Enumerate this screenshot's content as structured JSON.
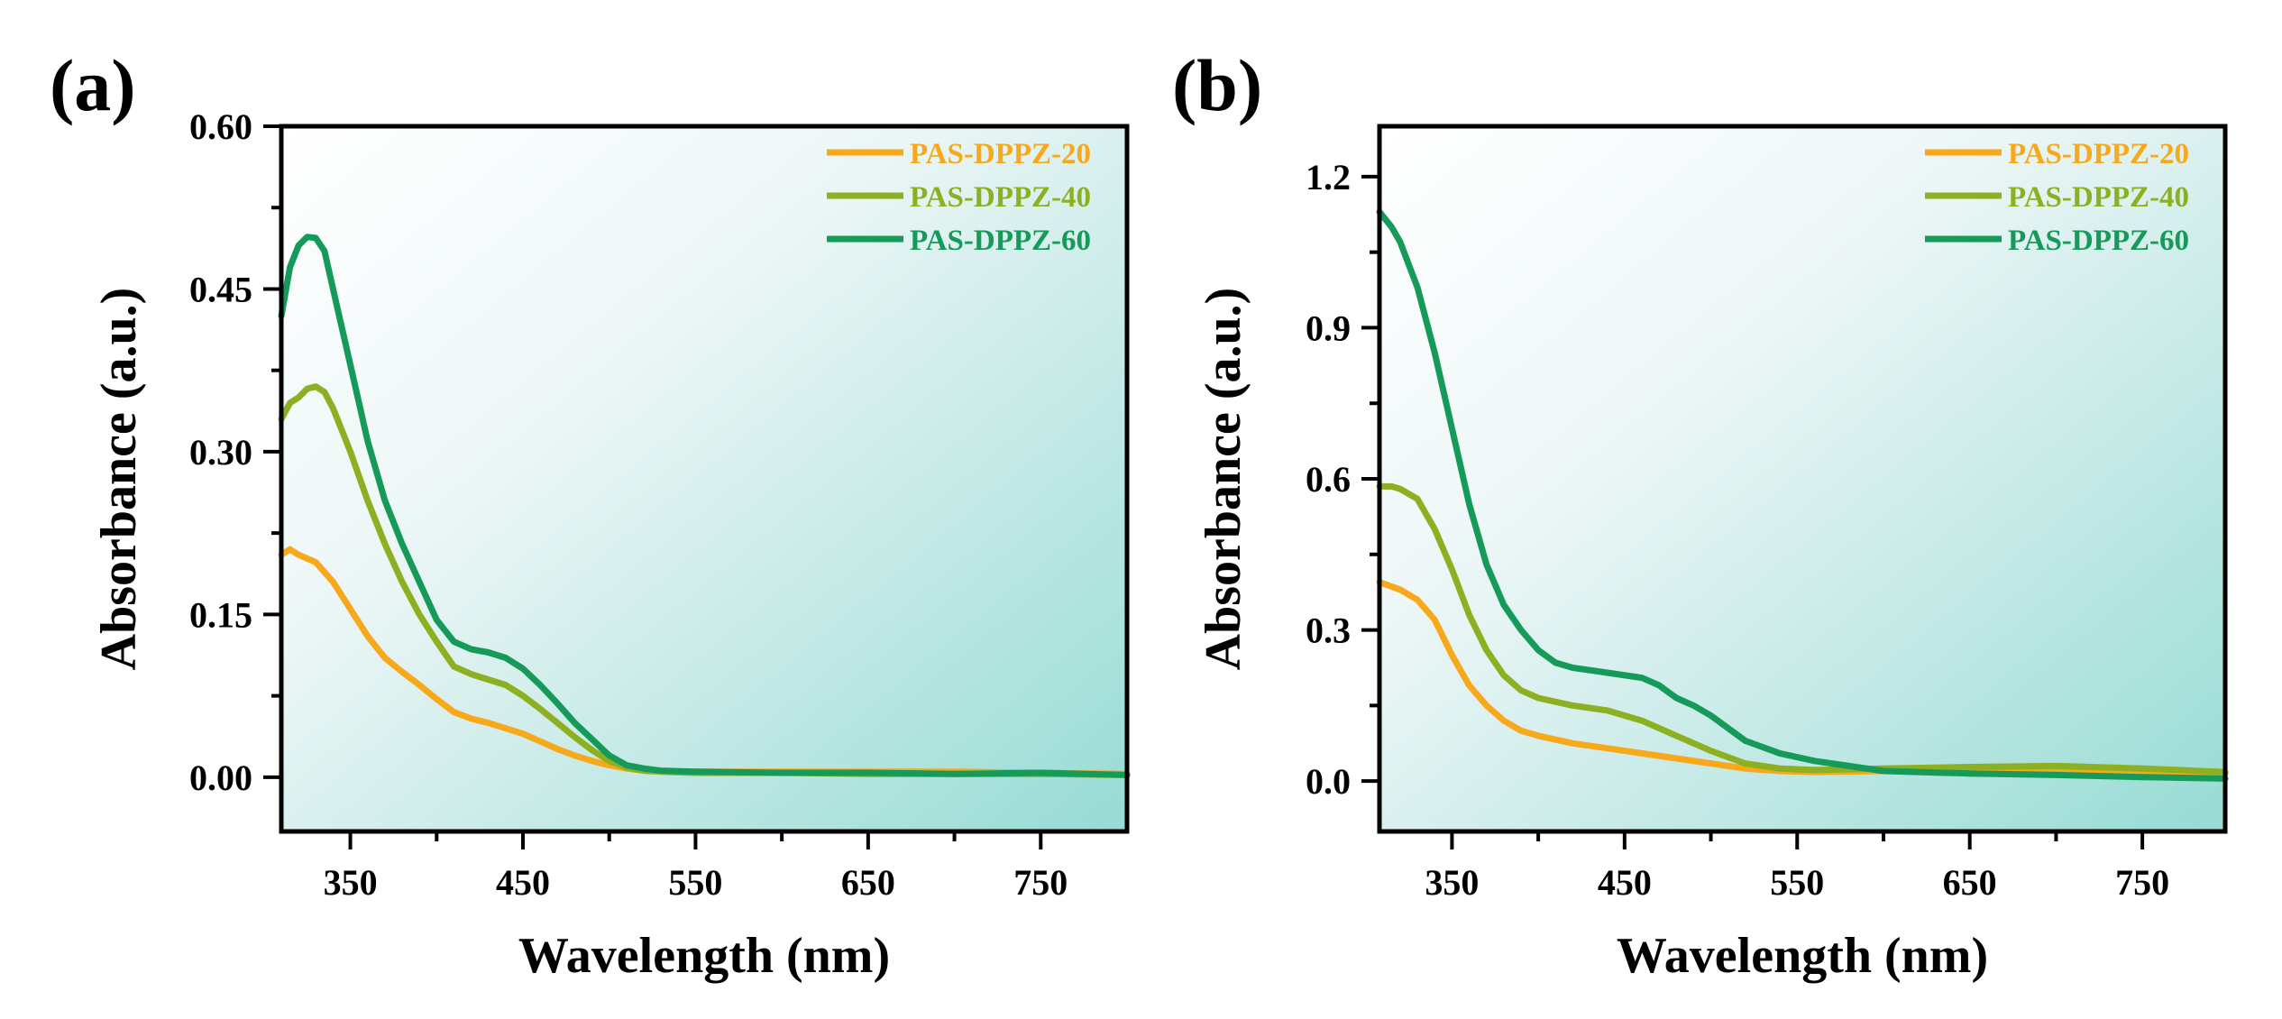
{
  "chart_data": [
    {
      "type": "line",
      "panel_label": "(a)",
      "xlabel": "Wavelength (nm)",
      "ylabel": "Absorbance (a.u.)",
      "xlim": [
        310,
        800
      ],
      "ylim": [
        -0.05,
        0.6
      ],
      "xticks": [
        350,
        450,
        550,
        650,
        750
      ],
      "xtick_labels": [
        "350",
        "450",
        "550",
        "650",
        "750"
      ],
      "yticks": [
        0.0,
        0.15,
        0.3,
        0.45,
        0.6
      ],
      "ytick_labels": [
        "0.00",
        "0.15",
        "0.30",
        "0.45",
        "0.60"
      ],
      "legend_position": "top-right",
      "series": [
        {
          "name": "PAS-DPPZ-20",
          "color": "#F7A81B",
          "x": [
            310,
            315,
            320,
            330,
            340,
            350,
            360,
            370,
            380,
            390,
            400,
            410,
            420,
            430,
            440,
            450,
            460,
            470,
            480,
            490,
            500,
            510,
            520,
            540,
            560,
            600,
            650,
            700,
            750,
            800
          ],
          "y": [
            0.205,
            0.21,
            0.205,
            0.198,
            0.18,
            0.155,
            0.13,
            0.11,
            0.097,
            0.085,
            0.072,
            0.06,
            0.054,
            0.05,
            0.045,
            0.04,
            0.033,
            0.026,
            0.02,
            0.015,
            0.011,
            0.008,
            0.006,
            0.005,
            0.005,
            0.005,
            0.005,
            0.005,
            0.004,
            0.003
          ]
        },
        {
          "name": "PAS-DPPZ-40",
          "color": "#8DB022",
          "x": [
            310,
            315,
            320,
            325,
            330,
            335,
            340,
            350,
            360,
            370,
            380,
            390,
            400,
            410,
            420,
            430,
            440,
            450,
            460,
            470,
            480,
            490,
            500,
            510,
            520,
            530,
            550,
            600,
            650,
            700,
            750,
            800
          ],
          "y": [
            0.33,
            0.345,
            0.35,
            0.358,
            0.36,
            0.355,
            0.34,
            0.3,
            0.255,
            0.215,
            0.18,
            0.15,
            0.125,
            0.102,
            0.095,
            0.09,
            0.085,
            0.075,
            0.063,
            0.05,
            0.037,
            0.025,
            0.015,
            0.009,
            0.006,
            0.005,
            0.004,
            0.004,
            0.003,
            0.003,
            0.003,
            0.002
          ]
        },
        {
          "name": "PAS-DPPZ-60",
          "color": "#159A5A",
          "x": [
            310,
            315,
            320,
            325,
            330,
            335,
            340,
            350,
            360,
            370,
            380,
            390,
            400,
            410,
            420,
            430,
            440,
            450,
            460,
            470,
            480,
            490,
            500,
            510,
            520,
            530,
            550,
            600,
            650,
            700,
            750,
            800
          ],
          "y": [
            0.425,
            0.47,
            0.49,
            0.498,
            0.497,
            0.485,
            0.45,
            0.38,
            0.31,
            0.255,
            0.215,
            0.18,
            0.145,
            0.125,
            0.118,
            0.115,
            0.11,
            0.1,
            0.085,
            0.068,
            0.05,
            0.035,
            0.02,
            0.011,
            0.008,
            0.006,
            0.005,
            0.004,
            0.004,
            0.003,
            0.004,
            0.002
          ]
        }
      ]
    },
    {
      "type": "line",
      "panel_label": "(b)",
      "xlabel": "Wavelength (nm)",
      "ylabel": "Absorbance (a.u.)",
      "xlim": [
        308,
        798
      ],
      "ylim": [
        -0.1,
        1.3
      ],
      "xticks": [
        350,
        450,
        550,
        650,
        750
      ],
      "xtick_labels": [
        "350",
        "450",
        "550",
        "650",
        "750"
      ],
      "yticks": [
        0.0,
        0.3,
        0.6,
        0.9,
        1.2
      ],
      "ytick_labels": [
        "0.0",
        "0.3",
        "0.6",
        "0.9",
        "1.2"
      ],
      "legend_position": "top-right",
      "series": [
        {
          "name": "PAS-DPPZ-20",
          "color": "#F7A81B",
          "x": [
            308,
            320,
            330,
            340,
            350,
            360,
            370,
            380,
            390,
            400,
            420,
            440,
            460,
            480,
            500,
            520,
            540,
            560,
            600,
            650,
            700,
            750,
            798
          ],
          "y": [
            0.395,
            0.38,
            0.36,
            0.32,
            0.25,
            0.19,
            0.15,
            0.12,
            0.1,
            0.09,
            0.075,
            0.065,
            0.055,
            0.045,
            0.035,
            0.025,
            0.02,
            0.018,
            0.02,
            0.02,
            0.02,
            0.018,
            0.015
          ]
        },
        {
          "name": "PAS-DPPZ-40",
          "color": "#8DB022",
          "x": [
            308,
            315,
            320,
            330,
            340,
            350,
            360,
            370,
            380,
            390,
            400,
            420,
            440,
            460,
            480,
            500,
            520,
            540,
            560,
            600,
            650,
            700,
            750,
            798
          ],
          "y": [
            0.585,
            0.585,
            0.58,
            0.56,
            0.5,
            0.42,
            0.33,
            0.26,
            0.21,
            0.18,
            0.165,
            0.15,
            0.14,
            0.12,
            0.09,
            0.06,
            0.035,
            0.025,
            0.022,
            0.025,
            0.028,
            0.03,
            0.025,
            0.018
          ]
        },
        {
          "name": "PAS-DPPZ-60",
          "color": "#159A5A",
          "x": [
            308,
            315,
            320,
            330,
            340,
            350,
            360,
            370,
            380,
            390,
            400,
            410,
            420,
            440,
            460,
            470,
            480,
            490,
            500,
            520,
            540,
            560,
            600,
            650,
            700,
            750,
            798
          ],
          "y": [
            1.13,
            1.1,
            1.07,
            0.98,
            0.85,
            0.7,
            0.55,
            0.43,
            0.35,
            0.3,
            0.26,
            0.235,
            0.225,
            0.215,
            0.205,
            0.19,
            0.165,
            0.15,
            0.13,
            0.08,
            0.055,
            0.04,
            0.02,
            0.015,
            0.012,
            0.008,
            0.005
          ]
        }
      ]
    }
  ]
}
